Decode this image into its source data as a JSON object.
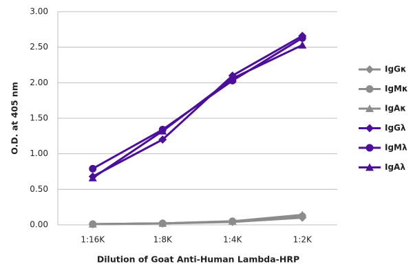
{
  "chart_data": {
    "type": "line",
    "y_label": "O.D. at 405 nm",
    "x_label": "Dilution of Goat Anti-Human Lambda-HRP",
    "categories": [
      "1:16K",
      "1:8K",
      "1:4K",
      "1:2K"
    ],
    "ylim": [
      0,
      3
    ],
    "yticks": [
      {
        "value": 0,
        "label": "0.00"
      },
      {
        "value": 0.5,
        "label": "0.50"
      },
      {
        "value": 1,
        "label": "1.00"
      },
      {
        "value": 1.5,
        "label": "1.50"
      },
      {
        "value": 2,
        "label": "2.00"
      },
      {
        "value": 2.5,
        "label": "2.50"
      },
      {
        "value": 3,
        "label": "3.00"
      }
    ],
    "grid": true,
    "legend": "right",
    "series": [
      {
        "name": "IgGκ",
        "color": "#8c8c8c",
        "marker": "diamond",
        "values": [
          0.01,
          0.02,
          0.04,
          0.1
        ]
      },
      {
        "name": "IgMκ",
        "color": "#8c8c8c",
        "marker": "circle",
        "values": [
          0.01,
          0.02,
          0.05,
          0.12
        ]
      },
      {
        "name": "IgAκ",
        "color": "#8c8c8c",
        "marker": "triangle",
        "values": [
          0.01,
          0.02,
          0.05,
          0.14
        ]
      },
      {
        "name": "IgGλ",
        "color": "#4b0f9a",
        "marker": "diamond",
        "values": [
          0.68,
          1.2,
          2.1,
          2.66
        ]
      },
      {
        "name": "IgMλ",
        "color": "#4b0f9a",
        "marker": "circle",
        "values": [
          0.79,
          1.34,
          2.03,
          2.63
        ]
      },
      {
        "name": "IgAλ",
        "color": "#4b0f9a",
        "marker": "triangle",
        "values": [
          0.66,
          1.32,
          2.06,
          2.53
        ]
      }
    ]
  }
}
